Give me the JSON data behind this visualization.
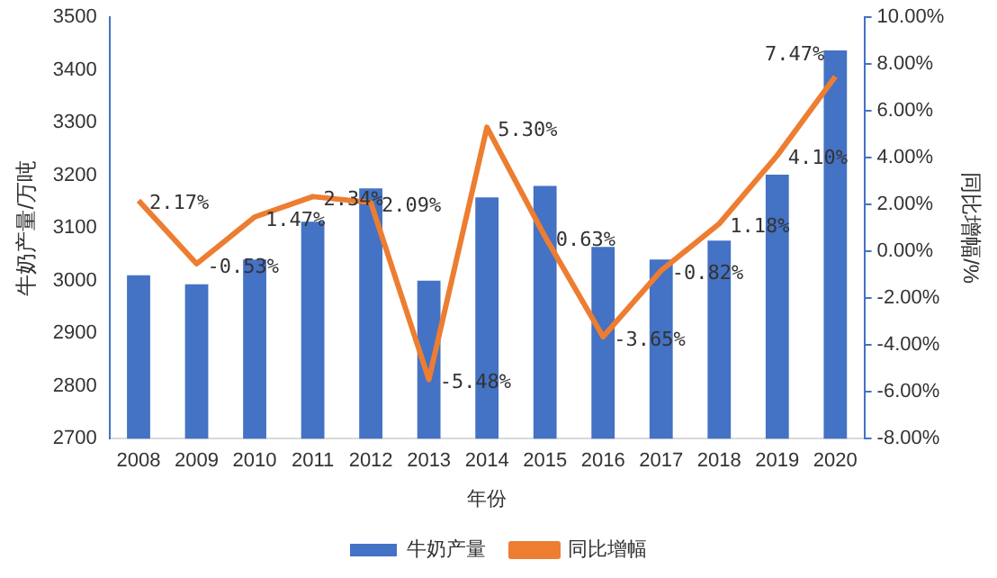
{
  "chart_data": {
    "type": "bar",
    "xlabel": "年份",
    "ylabel": "牛奶产量/万吨",
    "y2label": "同比增幅/%",
    "categories": [
      "2008",
      "2009",
      "2010",
      "2011",
      "2012",
      "2013",
      "2014",
      "2015",
      "2016",
      "2017",
      "2018",
      "2019",
      "2020"
    ],
    "series": [
      {
        "name": "牛奶产量",
        "color": "#4472c4",
        "values": [
          3010,
          2993,
          3040,
          3112,
          3175,
          3000,
          3158,
          3180,
          3064,
          3040,
          3076,
          3201,
          3437
        ]
      },
      {
        "name": "同比增幅",
        "type": "line",
        "axis": "y2",
        "color": "#ed7d31",
        "marker": "none",
        "values": [
          2.17,
          -0.53,
          1.47,
          2.34,
          2.09,
          -5.48,
          5.3,
          0.63,
          -3.65,
          -0.82,
          1.18,
          4.1,
          7.47
        ],
        "value_labels": [
          "2.17%",
          "-0.53%",
          "1.47%",
          "2.34%",
          "2.09%",
          "-5.48%",
          "5.30%",
          "0.63%",
          "-3.65%",
          "-0.82%",
          "1.18%",
          "4.10%",
          "7.47%"
        ]
      }
    ],
    "ylim": [
      2700,
      3500
    ],
    "yticks": [
      2700,
      2800,
      2900,
      3000,
      3100,
      3200,
      3300,
      3400,
      3500
    ],
    "y2lim": [
      -8,
      10
    ],
    "y2ticks": [
      {
        "value": -8,
        "label": "-8.00%"
      },
      {
        "value": -6,
        "label": "-6.00%"
      },
      {
        "value": -4,
        "label": "-4.00%"
      },
      {
        "value": -2,
        "label": "-2.00%"
      },
      {
        "value": 0,
        "label": "0.00%"
      },
      {
        "value": 2,
        "label": "2.00%"
      },
      {
        "value": 4,
        "label": "4.00%"
      },
      {
        "value": 6,
        "label": "6.00%"
      },
      {
        "value": 8,
        "label": "8.00%"
      },
      {
        "value": 10,
        "label": "10.00%"
      }
    ],
    "grid": false,
    "legend": "bottom"
  }
}
